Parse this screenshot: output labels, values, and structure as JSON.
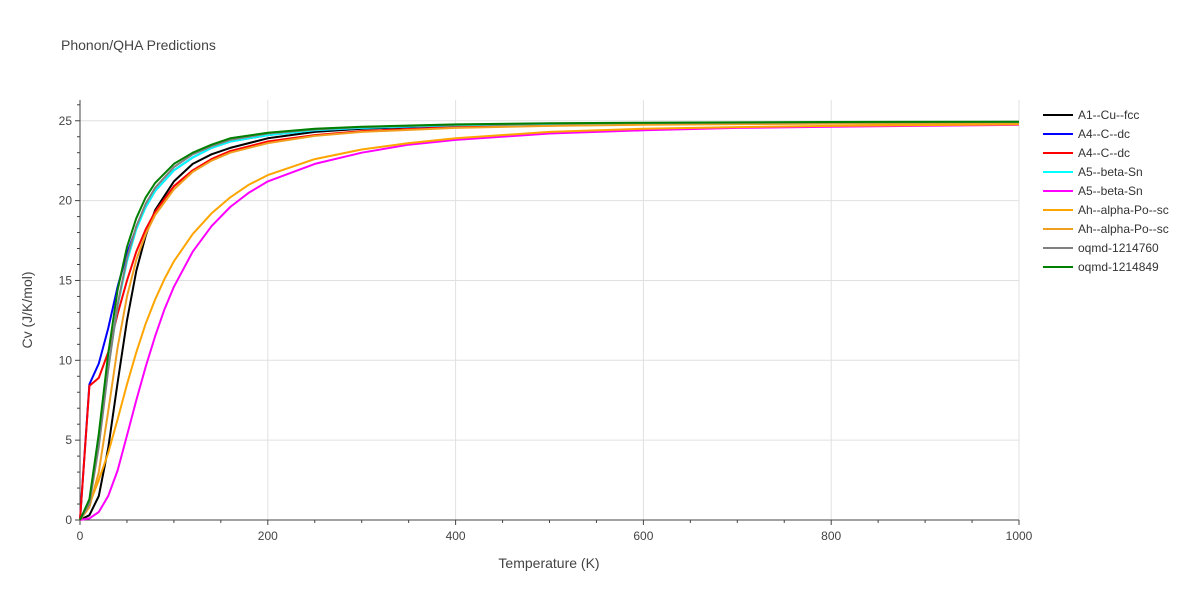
{
  "chart_data": {
    "type": "line",
    "title": "Phonon/QHA Predictions",
    "xlabel": "Temperature (K)",
    "ylabel": "Cv (J/K/mol)",
    "xlim": [
      0,
      1000
    ],
    "ylim": [
      0,
      26.3
    ],
    "x_ticks": [
      0,
      200,
      400,
      600,
      800,
      1000
    ],
    "y_ticks": [
      0,
      5,
      10,
      15,
      20,
      25
    ],
    "grid": true,
    "legend_position": "right",
    "series": [
      {
        "name": "A1--Cu--fcc",
        "color": "#000000",
        "points": [
          [
            0,
            0
          ],
          [
            10,
            0.3
          ],
          [
            20,
            1.5
          ],
          [
            30,
            4.5
          ],
          [
            40,
            8.6
          ],
          [
            50,
            12.5
          ],
          [
            60,
            15.6
          ],
          [
            70,
            17.8
          ],
          [
            80,
            19.4
          ],
          [
            100,
            21.2
          ],
          [
            120,
            22.3
          ],
          [
            140,
            22.9
          ],
          [
            160,
            23.3
          ],
          [
            200,
            23.9
          ],
          [
            250,
            24.3
          ],
          [
            300,
            24.5
          ],
          [
            400,
            24.7
          ],
          [
            500,
            24.8
          ],
          [
            600,
            24.85
          ],
          [
            800,
            24.9
          ],
          [
            1000,
            24.92
          ]
        ]
      },
      {
        "name": "A4--C--dc",
        "color": "#0000ff",
        "points": [
          [
            0,
            0
          ],
          [
            10,
            8.5
          ],
          [
            20,
            9.8
          ],
          [
            30,
            12.0
          ],
          [
            40,
            14.6
          ],
          [
            50,
            16.7
          ],
          [
            60,
            18.3
          ],
          [
            70,
            19.6
          ],
          [
            80,
            20.6
          ],
          [
            100,
            21.9
          ],
          [
            120,
            22.7
          ],
          [
            140,
            23.3
          ],
          [
            160,
            23.7
          ],
          [
            200,
            24.1
          ],
          [
            250,
            24.4
          ],
          [
            300,
            24.55
          ],
          [
            400,
            24.7
          ],
          [
            500,
            24.8
          ],
          [
            600,
            24.85
          ],
          [
            800,
            24.9
          ],
          [
            1000,
            24.92
          ]
        ]
      },
      {
        "name": "A4--C--dc",
        "color": "#ff0000",
        "points": [
          [
            0,
            0
          ],
          [
            10,
            8.4
          ],
          [
            20,
            8.9
          ],
          [
            30,
            10.5
          ],
          [
            40,
            12.9
          ],
          [
            50,
            15.0
          ],
          [
            60,
            16.8
          ],
          [
            70,
            18.2
          ],
          [
            80,
            19.3
          ],
          [
            100,
            20.9
          ],
          [
            120,
            21.9
          ],
          [
            140,
            22.6
          ],
          [
            160,
            23.1
          ],
          [
            200,
            23.7
          ],
          [
            250,
            24.1
          ],
          [
            300,
            24.35
          ],
          [
            400,
            24.6
          ],
          [
            500,
            24.7
          ],
          [
            600,
            24.78
          ],
          [
            800,
            24.85
          ],
          [
            1000,
            24.88
          ]
        ]
      },
      {
        "name": "A5--beta-Sn",
        "color": "#00ffff",
        "points": [
          [
            0,
            0
          ],
          [
            10,
            1.2
          ],
          [
            20,
            4.8
          ],
          [
            30,
            9.5
          ],
          [
            40,
            13.4
          ],
          [
            50,
            16.2
          ],
          [
            60,
            18.2
          ],
          [
            70,
            19.6
          ],
          [
            80,
            20.6
          ],
          [
            100,
            21.9
          ],
          [
            120,
            22.7
          ],
          [
            140,
            23.3
          ],
          [
            160,
            23.7
          ],
          [
            200,
            24.1
          ],
          [
            250,
            24.4
          ],
          [
            300,
            24.55
          ],
          [
            400,
            24.72
          ],
          [
            500,
            24.8
          ],
          [
            600,
            24.85
          ],
          [
            800,
            24.9
          ],
          [
            1000,
            24.92
          ]
        ]
      },
      {
        "name": "A5--beta-Sn",
        "color": "#ff00ff",
        "points": [
          [
            0,
            0
          ],
          [
            10,
            0.1
          ],
          [
            20,
            0.5
          ],
          [
            30,
            1.5
          ],
          [
            40,
            3.1
          ],
          [
            50,
            5.3
          ],
          [
            60,
            7.5
          ],
          [
            70,
            9.6
          ],
          [
            80,
            11.5
          ],
          [
            90,
            13.2
          ],
          [
            100,
            14.6
          ],
          [
            120,
            16.8
          ],
          [
            140,
            18.4
          ],
          [
            160,
            19.6
          ],
          [
            180,
            20.5
          ],
          [
            200,
            21.2
          ],
          [
            250,
            22.3
          ],
          [
            300,
            23.0
          ],
          [
            350,
            23.5
          ],
          [
            400,
            23.8
          ],
          [
            500,
            24.2
          ],
          [
            600,
            24.4
          ],
          [
            700,
            24.55
          ],
          [
            800,
            24.62
          ],
          [
            1000,
            24.75
          ]
        ]
      },
      {
        "name": "Ah--alpha-Po--sc",
        "color": "#ffa500",
        "points": [
          [
            0,
            0
          ],
          [
            10,
            1.0
          ],
          [
            20,
            2.5
          ],
          [
            30,
            4.2
          ],
          [
            40,
            6.3
          ],
          [
            50,
            8.5
          ],
          [
            60,
            10.5
          ],
          [
            70,
            12.3
          ],
          [
            80,
            13.8
          ],
          [
            90,
            15.1
          ],
          [
            100,
            16.2
          ],
          [
            120,
            17.9
          ],
          [
            140,
            19.2
          ],
          [
            160,
            20.2
          ],
          [
            180,
            21.0
          ],
          [
            200,
            21.6
          ],
          [
            250,
            22.6
          ],
          [
            300,
            23.2
          ],
          [
            350,
            23.6
          ],
          [
            400,
            23.9
          ],
          [
            500,
            24.3
          ],
          [
            600,
            24.5
          ],
          [
            700,
            24.6
          ],
          [
            800,
            24.68
          ],
          [
            1000,
            24.78
          ]
        ]
      },
      {
        "name": "Ah--alpha-Po--sc",
        "color": "#f0a020",
        "points": [
          [
            0,
            0
          ],
          [
            10,
            0.8
          ],
          [
            20,
            3.0
          ],
          [
            30,
            6.8
          ],
          [
            40,
            10.8
          ],
          [
            50,
            14.0
          ],
          [
            60,
            16.3
          ],
          [
            70,
            17.9
          ],
          [
            80,
            19.1
          ],
          [
            100,
            20.7
          ],
          [
            120,
            21.8
          ],
          [
            140,
            22.5
          ],
          [
            160,
            23.0
          ],
          [
            200,
            23.6
          ],
          [
            250,
            24.05
          ],
          [
            300,
            24.3
          ],
          [
            400,
            24.55
          ],
          [
            500,
            24.68
          ],
          [
            600,
            24.75
          ],
          [
            800,
            24.82
          ],
          [
            1000,
            24.85
          ]
        ]
      },
      {
        "name": "oqmd-1214760",
        "color": "#808080",
        "points": [
          [
            0,
            0
          ],
          [
            10,
            1.0
          ],
          [
            20,
            4.6
          ],
          [
            30,
            9.4
          ],
          [
            40,
            13.5
          ],
          [
            50,
            16.4
          ],
          [
            60,
            18.4
          ],
          [
            70,
            19.8
          ],
          [
            80,
            20.8
          ],
          [
            100,
            22.1
          ],
          [
            120,
            22.9
          ],
          [
            140,
            23.4
          ],
          [
            160,
            23.8
          ],
          [
            200,
            24.2
          ],
          [
            250,
            24.45
          ],
          [
            300,
            24.6
          ],
          [
            400,
            24.75
          ],
          [
            500,
            24.82
          ],
          [
            600,
            24.86
          ],
          [
            800,
            24.9
          ],
          [
            1000,
            24.93
          ]
        ]
      },
      {
        "name": "oqmd-1214849",
        "color": "#008000",
        "points": [
          [
            0,
            0
          ],
          [
            10,
            1.3
          ],
          [
            20,
            5.4
          ],
          [
            30,
            10.4
          ],
          [
            40,
            14.4
          ],
          [
            50,
            17.1
          ],
          [
            60,
            18.9
          ],
          [
            70,
            20.2
          ],
          [
            80,
            21.1
          ],
          [
            100,
            22.3
          ],
          [
            120,
            23.0
          ],
          [
            140,
            23.5
          ],
          [
            160,
            23.9
          ],
          [
            200,
            24.25
          ],
          [
            250,
            24.5
          ],
          [
            300,
            24.63
          ],
          [
            400,
            24.77
          ],
          [
            500,
            24.84
          ],
          [
            600,
            24.88
          ],
          [
            800,
            24.92
          ],
          [
            1000,
            24.94
          ]
        ]
      }
    ]
  }
}
